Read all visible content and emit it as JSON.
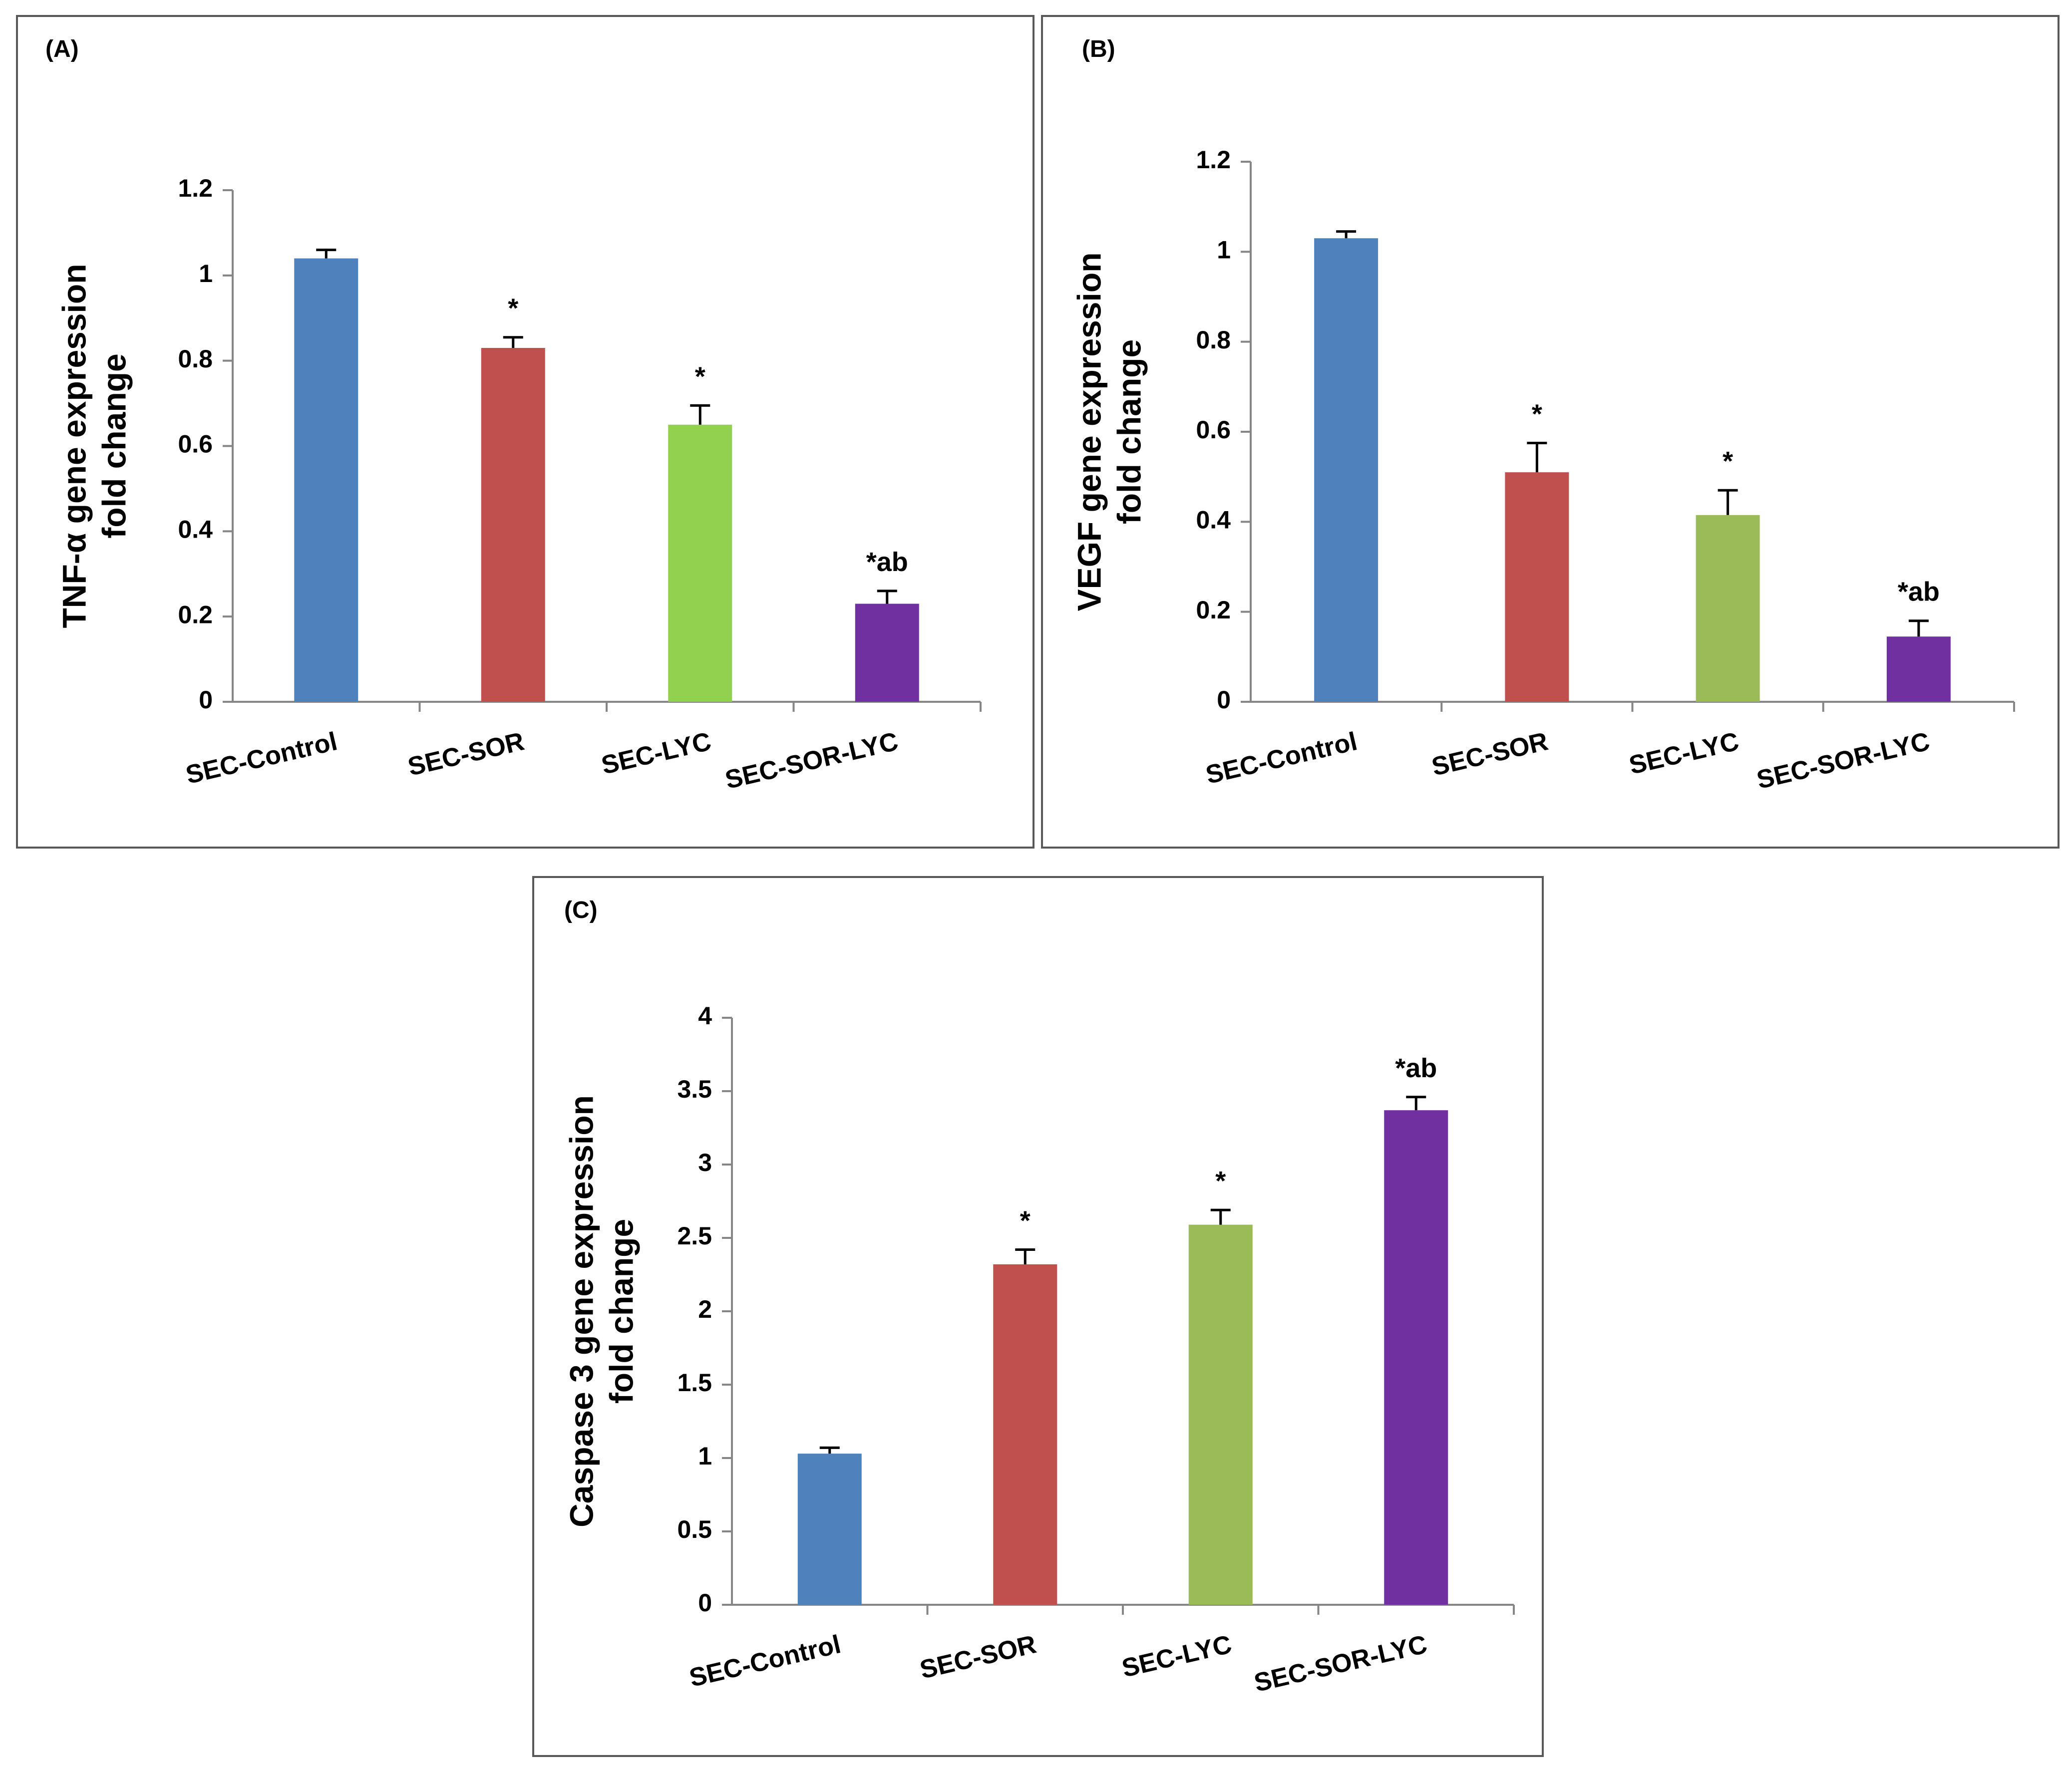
{
  "chart_data": [
    {
      "type": "bar",
      "panel_label": "(A)",
      "ylabel_lines": [
        "TNF-α gene expression",
        "fold change"
      ],
      "categories": [
        "SEC-Control",
        "SEC-SOR",
        "SEC-LYC",
        "SEC-SOR-LYC"
      ],
      "values": [
        1.04,
        0.83,
        0.65,
        0.23
      ],
      "errors": [
        0.02,
        0.025,
        0.045,
        0.03
      ],
      "annotations": [
        "",
        "*",
        "*",
        "*ab"
      ],
      "colors": [
        "#4F81BD",
        "#C0504D",
        "#92D050",
        "#7030A0"
      ],
      "ylim": [
        0,
        1.2
      ],
      "yticks": [
        0,
        0.2,
        0.4,
        0.6,
        0.8,
        1,
        1.2
      ],
      "ytick_labels": [
        "0",
        "0.2",
        "0.4",
        "0.6",
        "0.8",
        "1",
        "1.2"
      ]
    },
    {
      "type": "bar",
      "panel_label": "(B)",
      "ylabel_lines": [
        "VEGF gene expression",
        "fold change"
      ],
      "categories": [
        "SEC-Control",
        "SEC-SOR",
        "SEC-LYC",
        "SEC-SOR-LYC"
      ],
      "values": [
        1.03,
        0.51,
        0.415,
        0.145
      ],
      "errors": [
        0.015,
        0.065,
        0.055,
        0.035
      ],
      "annotations": [
        "",
        "*",
        "*",
        "*ab"
      ],
      "colors": [
        "#4F81BD",
        "#C0504D",
        "#9BBB59",
        "#7030A0"
      ],
      "ylim": [
        0,
        1.2
      ],
      "yticks": [
        0,
        0.2,
        0.4,
        0.6,
        0.8,
        1,
        1.2
      ],
      "ytick_labels": [
        "0",
        "0.2",
        "0.4",
        "0.6",
        "0.8",
        "1",
        "1.2"
      ]
    },
    {
      "type": "bar",
      "panel_label": "(C)",
      "ylabel_lines": [
        "Caspase 3 gene expression",
        "fold change"
      ],
      "categories": [
        "SEC-Control",
        "SEC-SOR",
        "SEC-LYC",
        "SEC-SOR-LYC"
      ],
      "values": [
        1.03,
        2.32,
        2.59,
        3.37
      ],
      "errors": [
        0.04,
        0.1,
        0.1,
        0.09
      ],
      "annotations": [
        "",
        "*",
        "*",
        "*ab"
      ],
      "colors": [
        "#4F81BD",
        "#C0504D",
        "#9BBB59",
        "#7030A0"
      ],
      "ylim": [
        0,
        4
      ],
      "yticks": [
        0,
        0.5,
        1,
        1.5,
        2,
        2.5,
        3,
        3.5,
        4
      ],
      "ytick_labels": [
        "0",
        "0.5",
        "1",
        "1.5",
        "2",
        "2.5",
        "3",
        "3.5",
        "4"
      ]
    }
  ]
}
